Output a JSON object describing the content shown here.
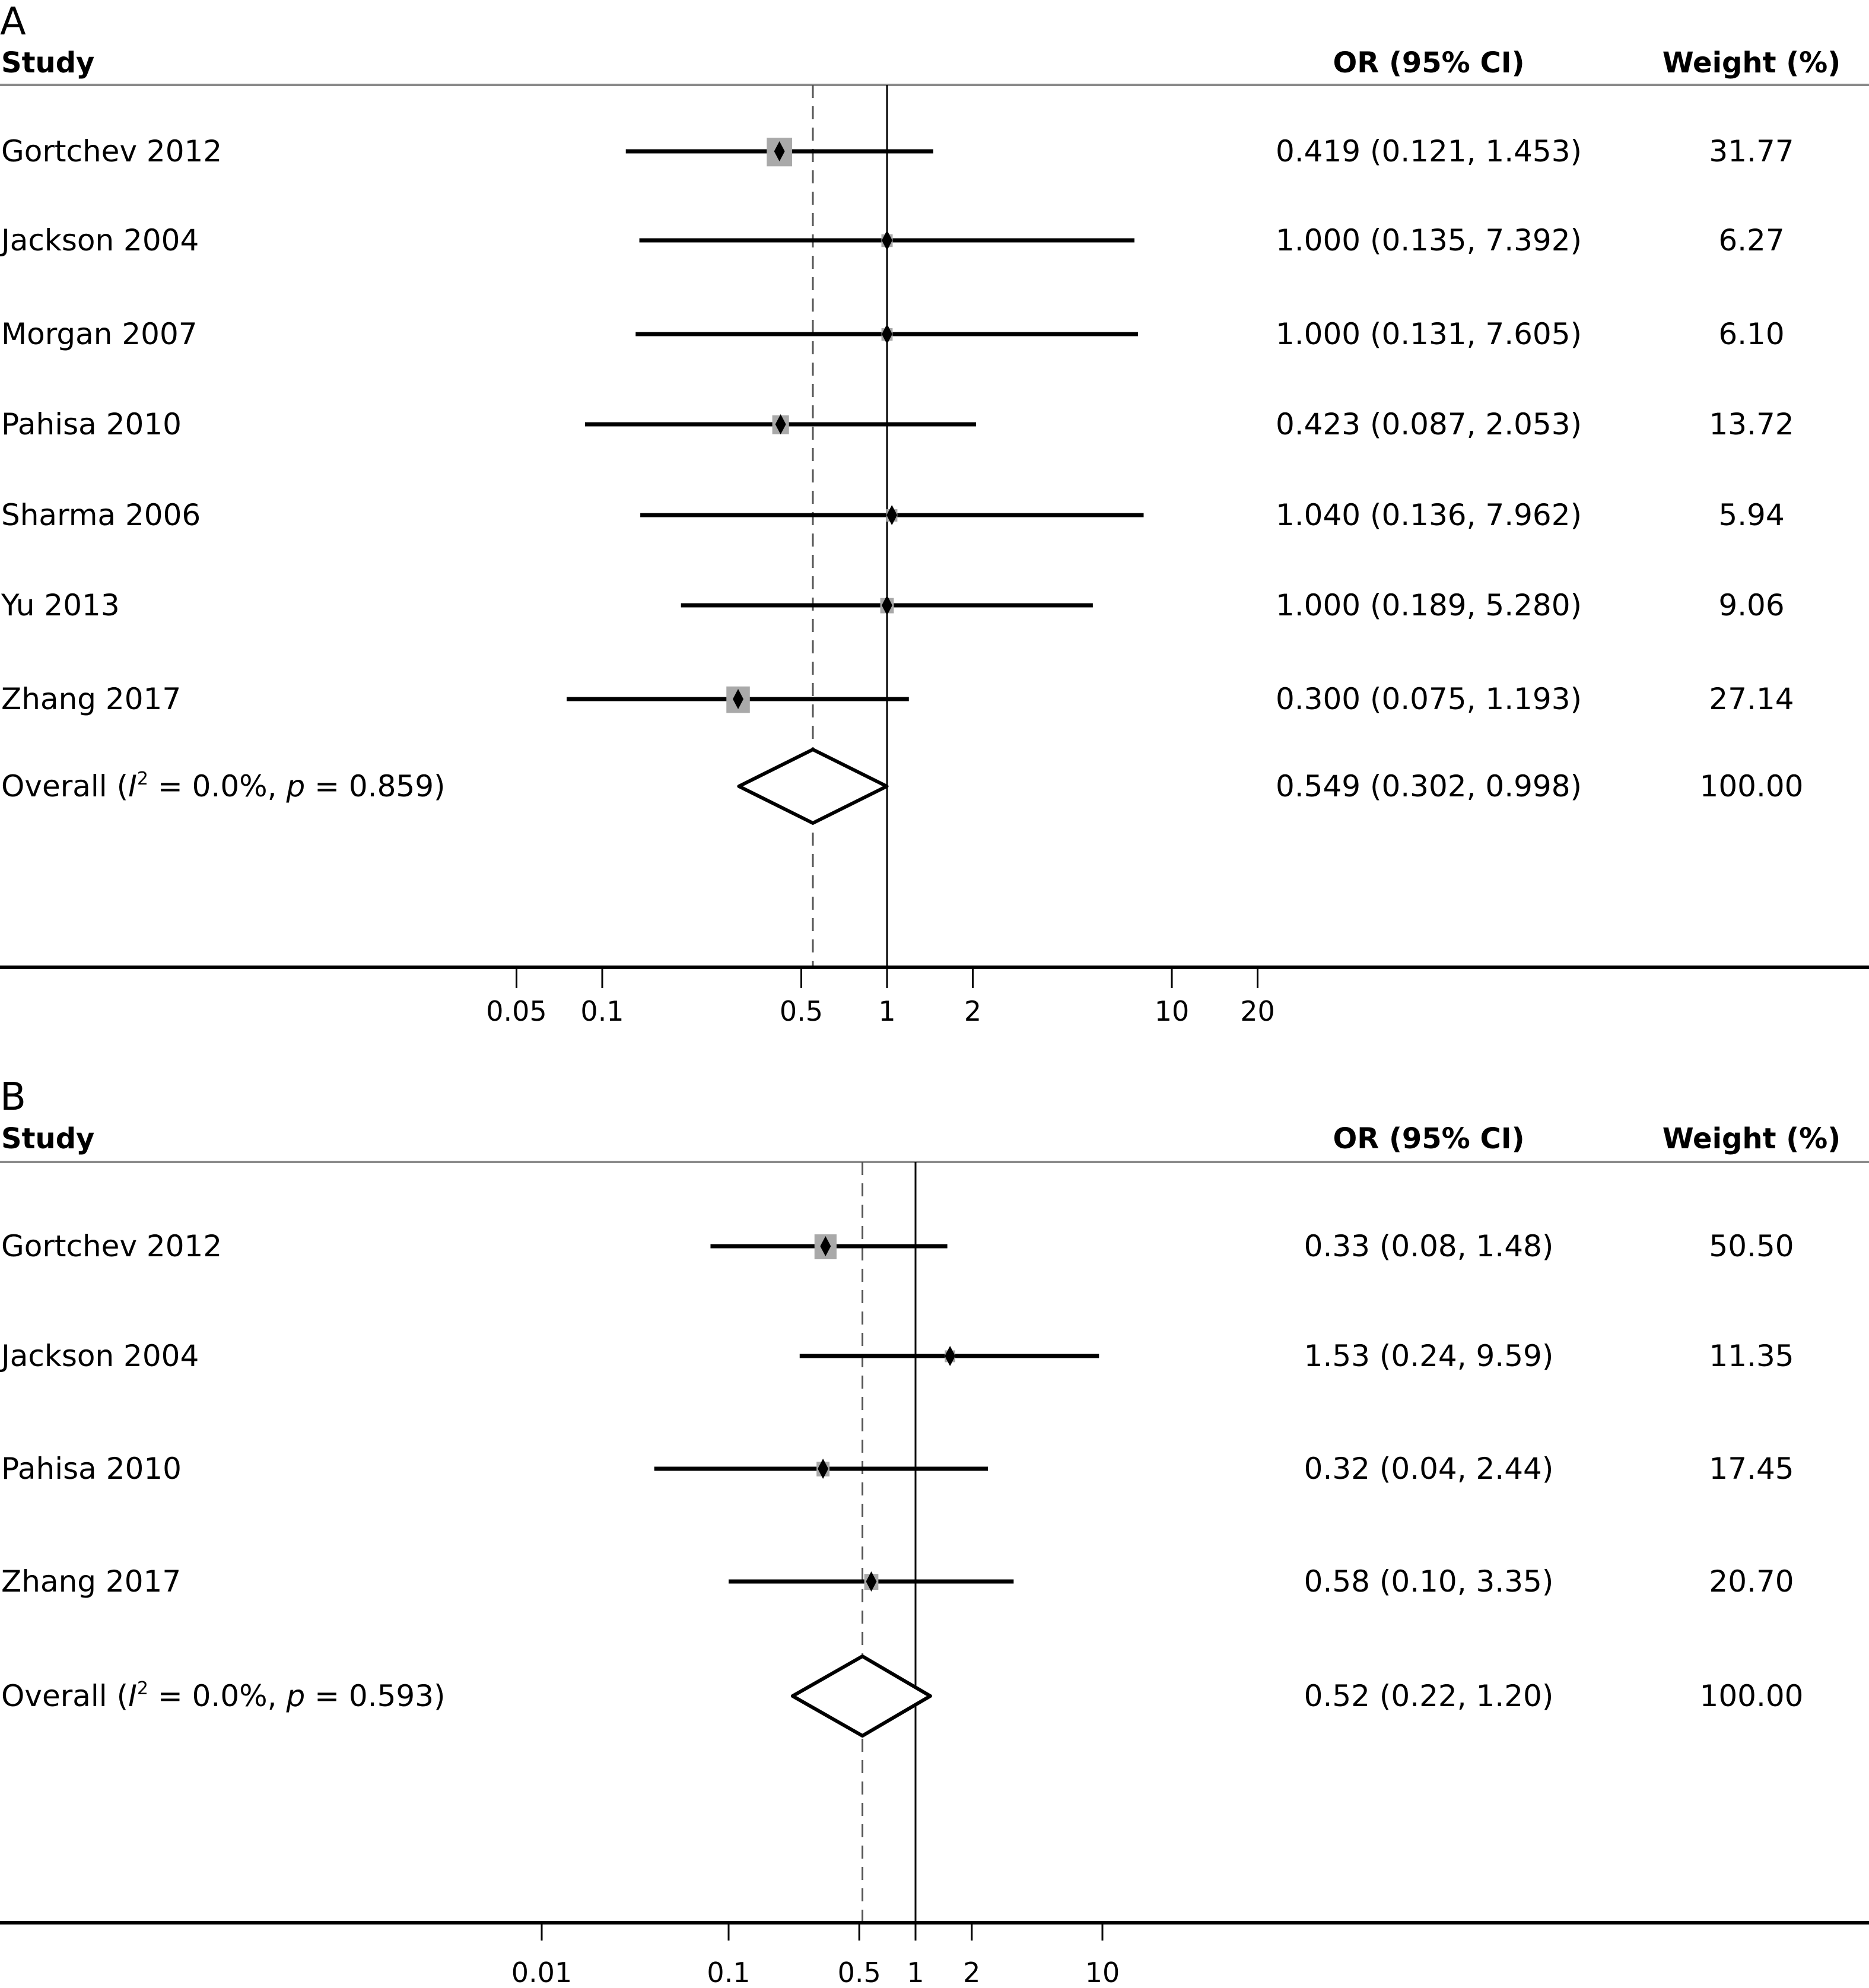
{
  "chart_data": [
    {
      "type": "forest",
      "panel_label": "A",
      "scale": "log",
      "headers": {
        "study": "Study",
        "or": "OR (95% CI)",
        "weight": "Weight (%)"
      },
      "x_ticks": [
        0.05,
        0.1,
        0.5,
        1,
        2,
        10,
        20
      ],
      "x_tick_labels": [
        "0.05",
        "0.1",
        "0.5",
        "1",
        "2",
        "10",
        "20"
      ],
      "reference_line": 1,
      "pooled_line": 0.549,
      "studies": [
        {
          "name": "Gortchev 2012",
          "or": 0.419,
          "lo": 0.121,
          "hi": 1.453,
          "or_text": "0.419 (0.121, 1.453)",
          "weight": 31.77,
          "weight_text": "31.77"
        },
        {
          "name": "Jackson 2004",
          "or": 1.0,
          "lo": 0.135,
          "hi": 7.392,
          "or_text": "1.000 (0.135, 7.392)",
          "weight": 6.27,
          "weight_text": "6.27"
        },
        {
          "name": "Morgan 2007",
          "or": 1.0,
          "lo": 0.131,
          "hi": 7.605,
          "or_text": "1.000 (0.131, 7.605)",
          "weight": 6.1,
          "weight_text": "6.10"
        },
        {
          "name": "Pahisa 2010",
          "or": 0.423,
          "lo": 0.087,
          "hi": 2.053,
          "or_text": "0.423 (0.087, 2.053)",
          "weight": 13.72,
          "weight_text": "13.72"
        },
        {
          "name": "Sharma 2006",
          "or": 1.04,
          "lo": 0.136,
          "hi": 7.962,
          "or_text": "1.040 (0.136, 7.962)",
          "weight": 5.94,
          "weight_text": "5.94"
        },
        {
          "name": "Yu 2013",
          "or": 1.0,
          "lo": 0.189,
          "hi": 5.28,
          "or_text": "1.000 (0.189, 5.280)",
          "weight": 9.06,
          "weight_text": "9.06"
        },
        {
          "name": "Zhang 2017",
          "or": 0.3,
          "lo": 0.075,
          "hi": 1.193,
          "or_text": "0.300 (0.075, 1.193)",
          "weight": 27.14,
          "weight_text": "27.14"
        }
      ],
      "overall": {
        "label_prefix": "Overall (",
        "i2_symbol": "I",
        "i2_sup": "2",
        "i2_text": " = 0.0%, ",
        "p_symbol": "p",
        "p_text": " = 0.859)",
        "or": 0.549,
        "lo": 0.302,
        "hi": 0.998,
        "or_text": "0.549 (0.302, 0.998)",
        "weight_text": "100.00"
      }
    },
    {
      "type": "forest",
      "panel_label": "B",
      "scale": "log",
      "headers": {
        "study": "Study",
        "or": "OR (95% CI)",
        "weight": "Weight (%)"
      },
      "x_ticks": [
        0.01,
        0.1,
        0.5,
        1,
        2,
        10
      ],
      "x_tick_labels": [
        "0.01",
        "0.1",
        "0.5",
        "1",
        "2",
        "10"
      ],
      "reference_line": 1,
      "pooled_line": 0.52,
      "studies": [
        {
          "name": "Gortchev 2012",
          "or": 0.33,
          "lo": 0.08,
          "hi": 1.48,
          "or_text": "0.33 (0.08, 1.48)",
          "weight": 50.5,
          "weight_text": "50.50"
        },
        {
          "name": "Jackson 2004",
          "or": 1.53,
          "lo": 0.24,
          "hi": 9.59,
          "or_text": "1.53 (0.24, 9.59)",
          "weight": 11.35,
          "weight_text": "11.35"
        },
        {
          "name": "Pahisa 2010",
          "or": 0.32,
          "lo": 0.04,
          "hi": 2.44,
          "or_text": "0.32 (0.04, 2.44)",
          "weight": 17.45,
          "weight_text": "17.45"
        },
        {
          "name": "Zhang 2017",
          "or": 0.58,
          "lo": 0.1,
          "hi": 3.35,
          "or_text": "0.58 (0.10, 3.35)",
          "weight": 20.7,
          "weight_text": "20.70"
        }
      ],
      "overall": {
        "label_prefix": "Overall (",
        "i2_symbol": "I",
        "i2_sup": "2",
        "i2_text": " = 0.0%, ",
        "p_symbol": "p",
        "p_text": " = 0.593)",
        "or": 0.52,
        "lo": 0.22,
        "hi": 1.2,
        "or_text": "0.52 (0.22, 1.20)",
        "weight_text": "100.00"
      }
    }
  ]
}
